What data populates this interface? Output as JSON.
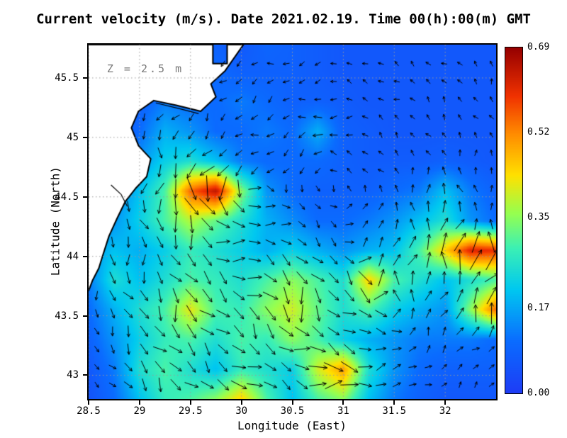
{
  "chart_data": {
    "type": "heatmap+quiver",
    "title": "Current velocity (m/s). Date 2021.02.19. Time 00(h):00(m) GMT",
    "xlabel": "Longitude (East)",
    "ylabel": "Latitude (North)",
    "xlim": [
      28.5,
      32.5
    ],
    "ylim": [
      42.8,
      45.78
    ],
    "xticks": [
      28.5,
      29,
      29.5,
      30,
      30.5,
      31,
      31.5,
      32
    ],
    "xtick_labels": [
      "28.5",
      "29",
      "29.5",
      "30",
      "30.5",
      "31",
      "31.5",
      "32"
    ],
    "yticks": [
      43,
      43.5,
      44,
      44.5,
      45,
      45.5
    ],
    "ytick_labels": [
      "43",
      "43.5",
      "44",
      "44.5",
      "45",
      "45.5"
    ],
    "grid": true,
    "gridline_color": "#9a9a9a",
    "annotation": {
      "text": "Z = 2.5 m",
      "lon": 28.68,
      "lat": 45.58
    },
    "colorbar": {
      "min": 0.0,
      "max": 0.69,
      "ticks": [
        0.0,
        0.17,
        0.35,
        0.52,
        0.69
      ],
      "tick_labels": [
        "0.00",
        "0.17",
        "0.35",
        "0.52",
        "0.69"
      ]
    },
    "colormap": [
      [
        0.0,
        "#1e3cf5"
      ],
      [
        0.15,
        "#0a6cff"
      ],
      [
        0.3,
        "#00c8f0"
      ],
      [
        0.42,
        "#3cf0b4"
      ],
      [
        0.52,
        "#96ff50"
      ],
      [
        0.63,
        "#ffe100"
      ],
      [
        0.75,
        "#ff8c00"
      ],
      [
        0.86,
        "#f03200"
      ],
      [
        1.0,
        "#960000"
      ]
    ],
    "speed_grid": {
      "lon_start": 28.5,
      "lon_step": 0.25,
      "lat_start": 45.8,
      "lat_step": -0.25,
      "values": [
        [
          0.05,
          0.05,
          0.05,
          0.08,
          0.1,
          0.08,
          0.06,
          0.09,
          0.08,
          0.07,
          0.06,
          0.06,
          0.06,
          0.06,
          0.06,
          0.06,
          0.06
        ],
        [
          0.05,
          0.05,
          0.06,
          0.1,
          0.12,
          0.1,
          0.08,
          0.08,
          0.08,
          0.07,
          0.06,
          0.06,
          0.06,
          0.06,
          0.06,
          0.06,
          0.06
        ],
        [
          0.05,
          0.06,
          0.08,
          0.12,
          0.1,
          0.1,
          0.12,
          0.1,
          0.08,
          0.08,
          0.07,
          0.06,
          0.06,
          0.06,
          0.06,
          0.06,
          0.06
        ],
        [
          0.05,
          0.06,
          0.1,
          0.18,
          0.15,
          0.1,
          0.1,
          0.12,
          0.1,
          0.18,
          0.08,
          0.07,
          0.06,
          0.06,
          0.06,
          0.06,
          0.06
        ],
        [
          0.06,
          0.08,
          0.15,
          0.22,
          0.25,
          0.2,
          0.12,
          0.1,
          0.1,
          0.1,
          0.08,
          0.07,
          0.07,
          0.07,
          0.08,
          0.07,
          0.06
        ],
        [
          0.08,
          0.12,
          0.2,
          0.3,
          0.55,
          0.65,
          0.35,
          0.15,
          0.1,
          0.08,
          0.08,
          0.08,
          0.1,
          0.12,
          0.2,
          0.12,
          0.08
        ],
        [
          0.1,
          0.15,
          0.22,
          0.3,
          0.38,
          0.32,
          0.25,
          0.18,
          0.14,
          0.1,
          0.1,
          0.12,
          0.15,
          0.2,
          0.25,
          0.15,
          0.1
        ],
        [
          0.15,
          0.2,
          0.18,
          0.22,
          0.28,
          0.25,
          0.22,
          0.18,
          0.22,
          0.18,
          0.15,
          0.18,
          0.2,
          0.3,
          0.45,
          0.62,
          0.6
        ],
        [
          0.12,
          0.25,
          0.2,
          0.25,
          0.3,
          0.28,
          0.25,
          0.3,
          0.35,
          0.3,
          0.25,
          0.45,
          0.3,
          0.25,
          0.2,
          0.25,
          0.3
        ],
        [
          0.1,
          0.18,
          0.25,
          0.3,
          0.42,
          0.3,
          0.28,
          0.35,
          0.4,
          0.32,
          0.25,
          0.3,
          0.22,
          0.18,
          0.15,
          0.35,
          0.55
        ],
        [
          0.08,
          0.15,
          0.22,
          0.28,
          0.3,
          0.25,
          0.3,
          0.28,
          0.35,
          0.3,
          0.22,
          0.18,
          0.15,
          0.12,
          0.12,
          0.12,
          0.1
        ],
        [
          0.06,
          0.12,
          0.25,
          0.3,
          0.25,
          0.2,
          0.28,
          0.25,
          0.22,
          0.4,
          0.5,
          0.25,
          0.15,
          0.1,
          0.08,
          0.08,
          0.08
        ],
        [
          0.05,
          0.1,
          0.2,
          0.28,
          0.3,
          0.35,
          0.45,
          0.3,
          0.2,
          0.3,
          0.35,
          0.2,
          0.12,
          0.08,
          0.06,
          0.06,
          0.06
        ]
      ]
    },
    "vectors": {
      "lon_start": 28.58,
      "lon_step": 0.155,
      "cols": 26,
      "lat_start": 42.92,
      "lat_step": 0.15,
      "rows": 19,
      "arrow_color": "#000000",
      "model": {
        "gyre": {
          "lon": 30.9,
          "lat": 44.45,
          "strength": 0.8
        },
        "eddies": [
          {
            "lon": 29.75,
            "lat": 44.55,
            "r": 0.45,
            "strength": 1.3
          },
          {
            "lon": 30.35,
            "lat": 43.85,
            "r": 0.5,
            "strength": -1.4
          },
          {
            "lon": 31.55,
            "lat": 43.35,
            "r": 0.45,
            "strength": 1.4
          }
        ]
      }
    },
    "coastline": {
      "land_color": "#ffffff",
      "coast_color": "#000000",
      "points": [
        [
          28.5,
          45.78
        ],
        [
          29.72,
          45.78
        ],
        [
          29.72,
          45.62
        ],
        [
          29.86,
          45.62
        ],
        [
          29.86,
          45.78
        ],
        [
          30.02,
          45.78
        ],
        [
          29.84,
          45.56
        ],
        [
          29.7,
          45.45
        ],
        [
          29.75,
          45.34
        ],
        [
          29.6,
          45.22
        ],
        [
          29.36,
          45.27
        ],
        [
          29.14,
          45.31
        ],
        [
          28.99,
          45.22
        ],
        [
          28.92,
          45.08
        ],
        [
          28.99,
          44.93
        ],
        [
          29.11,
          44.82
        ],
        [
          29.07,
          44.67
        ],
        [
          28.96,
          44.57
        ],
        [
          28.86,
          44.46
        ],
        [
          28.78,
          44.32
        ],
        [
          28.7,
          44.17
        ],
        [
          28.64,
          44.01
        ],
        [
          28.6,
          43.9
        ],
        [
          28.54,
          43.8
        ],
        [
          28.5,
          43.71
        ]
      ],
      "details": [
        [
          [
            28.72,
            44.6
          ],
          [
            28.82,
            44.52
          ],
          [
            28.88,
            44.42
          ]
        ],
        [
          [
            29.16,
            45.29
          ],
          [
            29.4,
            45.24
          ],
          [
            29.58,
            45.2
          ]
        ]
      ]
    }
  }
}
